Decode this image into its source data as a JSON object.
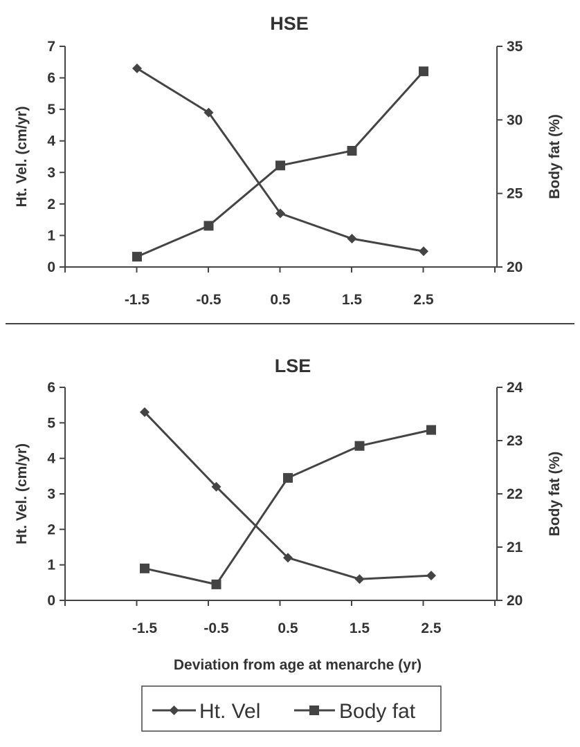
{
  "chart_data": [
    {
      "type": "line",
      "title": "HSE",
      "x": [
        "-1.5",
        "-0.5",
        "0.5",
        "1.5",
        "2.5"
      ],
      "xlabel": "",
      "ylabel_left": "Ht. Vel. (cm/yr)",
      "ylabel_right": "Body fat (%)",
      "ylim_left": [
        0,
        7
      ],
      "yticks_left": [
        "0",
        "1",
        "2",
        "3",
        "4",
        "5",
        "6",
        "7"
      ],
      "ylim_right": [
        20,
        35
      ],
      "yticks_right": [
        "20",
        "25",
        "30",
        "35"
      ],
      "grid": false,
      "series": [
        {
          "name": "Ht. Vel",
          "axis": "left",
          "marker": "diamond",
          "values": [
            6.3,
            4.9,
            1.7,
            0.9,
            0.5
          ]
        },
        {
          "name": "Body fat",
          "axis": "right",
          "marker": "square",
          "values": [
            20.7,
            22.8,
            26.9,
            27.9,
            33.3
          ]
        }
      ]
    },
    {
      "type": "line",
      "title": "LSE",
      "x": [
        "-1.5",
        "-0.5",
        "0.5",
        "1.5",
        "2.5"
      ],
      "xlabel": "Deviation from age at menarche (yr)",
      "ylabel_left": "Ht. Vel. (cm/yr)",
      "ylabel_right": "Body fat (%)",
      "ylim_left": [
        0,
        6
      ],
      "yticks_left": [
        "0",
        "1",
        "2",
        "3",
        "4",
        "5",
        "6"
      ],
      "ylim_right": [
        20,
        24
      ],
      "yticks_right": [
        "20",
        "21",
        "22",
        "23",
        "24"
      ],
      "grid": false,
      "series": [
        {
          "name": "Ht. Vel",
          "axis": "left",
          "marker": "diamond",
          "values": [
            5.3,
            3.2,
            1.2,
            0.6,
            0.7
          ]
        },
        {
          "name": "Body fat",
          "axis": "right",
          "marker": "square",
          "values": [
            20.6,
            20.3,
            22.3,
            22.9,
            23.2
          ]
        }
      ]
    }
  ],
  "legend": {
    "position": "bottom-center",
    "items": [
      {
        "label": "Ht. Vel",
        "marker": "diamond"
      },
      {
        "label": "Body fat",
        "marker": "square"
      }
    ]
  },
  "colors": {
    "ink": "#333333",
    "line": "#444444",
    "background": "#ffffff"
  }
}
